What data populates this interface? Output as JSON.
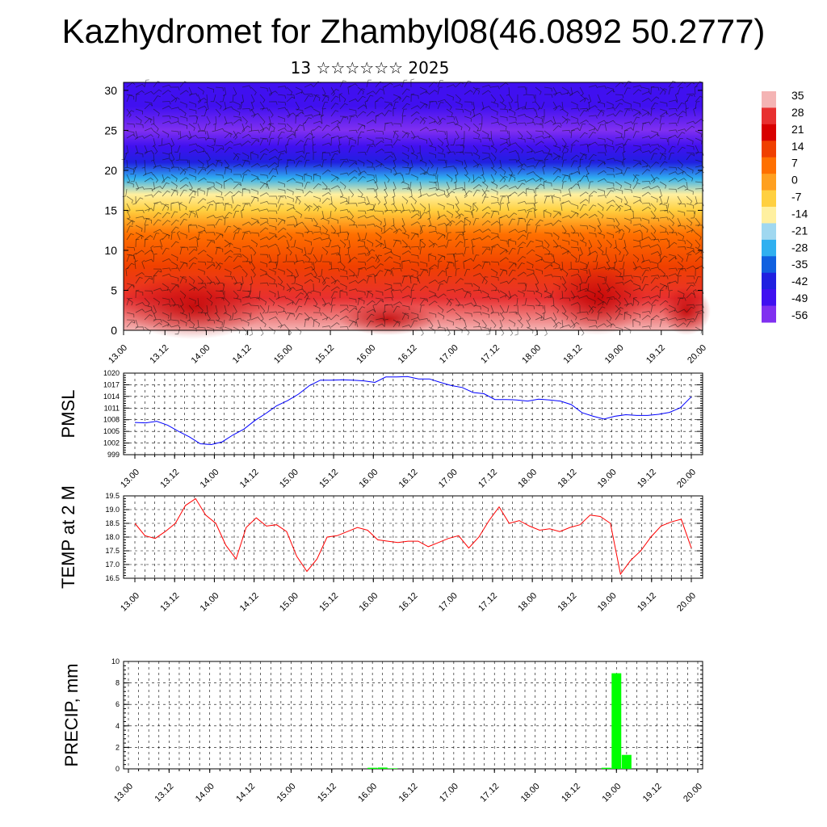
{
  "title": "Kazhydromet for Zhambyl08(46.0892 50.2777)",
  "subtitle": "13 ☆☆☆☆☆☆ 2025",
  "chart_data": [
    {
      "type": "heatmap",
      "description": "temperature cross-section with wind barbs",
      "y_ticks": [
        "0",
        "5",
        "10",
        "15",
        "20",
        "25",
        "30"
      ],
      "ylim": [
        0,
        31
      ],
      "x_ticks": [
        "13.00",
        "13.12",
        "14.00",
        "14.12",
        "15.00",
        "15.12",
        "16.00",
        "16.12",
        "17.00",
        "17.12",
        "18.00",
        "18.12",
        "19.00",
        "19.12",
        "20.00"
      ],
      "colorbar": {
        "labels": [
          "35",
          "28",
          "21",
          "14",
          "7",
          "0",
          "-7",
          "-14",
          "-21",
          "-28",
          "-35",
          "-42",
          "-49",
          "-56"
        ],
        "colors": [
          "#f4b4b4",
          "#e83030",
          "#d80000",
          "#f04000",
          "#ff7000",
          "#ffa020",
          "#ffd040",
          "#fff0a0",
          "#a0d8f0",
          "#30b0f0",
          "#1060e0",
          "#2020e0",
          "#4010f0",
          "#8030f0"
        ]
      },
      "temperature_rows": [
        {
          "level": 0,
          "value": 28
        },
        {
          "level": 4,
          "value": 23
        },
        {
          "level": 8,
          "value": 12
        },
        {
          "level": 12,
          "value": 2
        },
        {
          "level": 15,
          "value": -10
        },
        {
          "level": 17,
          "value": -18
        },
        {
          "level": 19,
          "value": -30
        },
        {
          "level": 21,
          "value": -45
        },
        {
          "level": 23,
          "value": -56
        },
        {
          "level": 25,
          "value": -58
        },
        {
          "level": 28,
          "value": -55
        },
        {
          "level": 31,
          "value": -53
        }
      ]
    },
    {
      "type": "line",
      "ylabel": "PMSL",
      "y_ticks": [
        "999",
        "1002",
        "1005",
        "1008",
        "1011",
        "1014",
        "1017",
        "1020"
      ],
      "ylim": [
        999,
        1020
      ],
      "x_ticks": [
        "13.00",
        "13.12",
        "14.00",
        "14.12",
        "15.00",
        "15.12",
        "16.00",
        "16.12",
        "17.00",
        "17.12",
        "18.00",
        "18.12",
        "19.00",
        "19.12",
        "20.00"
      ],
      "color": "#0000ff",
      "series": [
        {
          "values": [
            1007.3,
            1007.2,
            1007.6,
            1006.6,
            1005.0,
            1003.6,
            1001.8,
            1001.6,
            1002.3,
            1004.1,
            1005.6,
            1007.8,
            1009.6,
            1011.6,
            1012.9,
            1014.6,
            1016.8,
            1018.2,
            1018.2,
            1018.3,
            1018.2,
            1018.0,
            1017.6,
            1019.0,
            1019.0,
            1019.1,
            1018.5,
            1018.5,
            1017.6,
            1016.8,
            1016.3,
            1015.0,
            1014.7,
            1013.2,
            1013.2,
            1013.1,
            1012.8,
            1013.3,
            1013.1,
            1012.8,
            1011.9,
            1009.8,
            1008.9,
            1008.2,
            1008.9,
            1009.3,
            1009.1,
            1009.1,
            1009.4,
            1009.9,
            1011.1,
            1013.9
          ]
        }
      ]
    },
    {
      "type": "line",
      "ylabel": "TEMP at 2 M",
      "y_ticks": [
        "16.5",
        "17.0",
        "17.5",
        "18.0",
        "18.5",
        "19.0",
        "19.5"
      ],
      "ylim": [
        16.5,
        19.5
      ],
      "x_ticks": [
        "13.00",
        "13.12",
        "14.00",
        "14.12",
        "15.00",
        "15.12",
        "16.00",
        "16.12",
        "17.00",
        "17.12",
        "18.00",
        "18.12",
        "19.00",
        "19.12",
        "20.00"
      ],
      "color": "#ff0000",
      "series": [
        {
          "values": [
            18.5,
            18.05,
            17.95,
            18.2,
            18.5,
            19.15,
            19.4,
            18.8,
            18.5,
            17.7,
            17.2,
            18.35,
            18.7,
            18.4,
            18.45,
            18.2,
            17.3,
            16.75,
            17.2,
            18.0,
            18.05,
            18.2,
            18.35,
            18.25,
            17.9,
            17.85,
            17.8,
            17.85,
            17.85,
            17.65,
            17.8,
            17.95,
            18.05,
            17.6,
            18.0,
            18.6,
            19.1,
            18.5,
            18.6,
            18.4,
            18.25,
            18.3,
            18.2,
            18.35,
            18.45,
            18.8,
            18.75,
            18.5,
            16.65,
            17.15,
            17.5,
            18.0,
            18.4,
            18.55,
            18.65,
            17.6
          ]
        }
      ]
    },
    {
      "type": "bar",
      "ylabel": "PRECIP, mm",
      "y_ticks": [
        "0",
        "2",
        "4",
        "6",
        "8",
        "10"
      ],
      "ylim": [
        0,
        10
      ],
      "x_ticks": [
        "13.00",
        "13.12",
        "14.00",
        "14.12",
        "15.00",
        "15.12",
        "16.00",
        "16.12",
        "17.00",
        "17.12",
        "18.00",
        "18.12",
        "19.00",
        "19.12",
        "20.00"
      ],
      "color": "#00ff00",
      "bars": [
        {
          "x": 16.0,
          "value": 0.1
        },
        {
          "x": 16.125,
          "value": 0.12
        },
        {
          "x": 16.25,
          "value": 0.05
        },
        {
          "x": 18.875,
          "value": 0.1
        },
        {
          "x": 19.0,
          "value": 8.9
        },
        {
          "x": 19.125,
          "value": 1.3
        }
      ]
    }
  ]
}
